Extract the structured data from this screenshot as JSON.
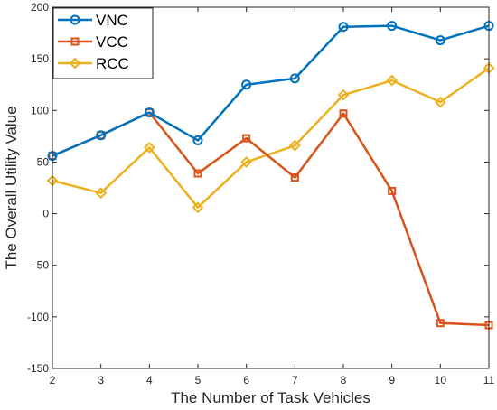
{
  "chart_data": {
    "type": "line",
    "xlabel": "The Number of Task Vehicles",
    "ylabel": "The Overall Utility Value",
    "x": [
      2,
      3,
      4,
      5,
      6,
      7,
      8,
      9,
      10,
      11
    ],
    "xlim": [
      2,
      11
    ],
    "ylim": [
      -150,
      200
    ],
    "xticks": [
      2,
      3,
      4,
      5,
      6,
      7,
      8,
      9,
      10,
      11
    ],
    "yticks": [
      -150,
      -100,
      -50,
      0,
      50,
      100,
      150,
      200
    ],
    "grid": false,
    "legend": "top-left",
    "series": [
      {
        "name": "VNC",
        "color": "#0072BD",
        "marker": "circle",
        "values": [
          56,
          76,
          98,
          71,
          125,
          131,
          181,
          182,
          168,
          182
        ]
      },
      {
        "name": "VCC",
        "color": "#D95319",
        "marker": "square",
        "values": [
          56,
          76,
          98,
          39,
          73,
          35,
          97,
          22,
          -106,
          -108
        ]
      },
      {
        "name": "RCC",
        "color": "#EDB120",
        "marker": "diamond",
        "values": [
          32,
          20,
          64,
          6,
          50,
          66,
          115,
          129,
          108,
          141
        ]
      }
    ]
  }
}
